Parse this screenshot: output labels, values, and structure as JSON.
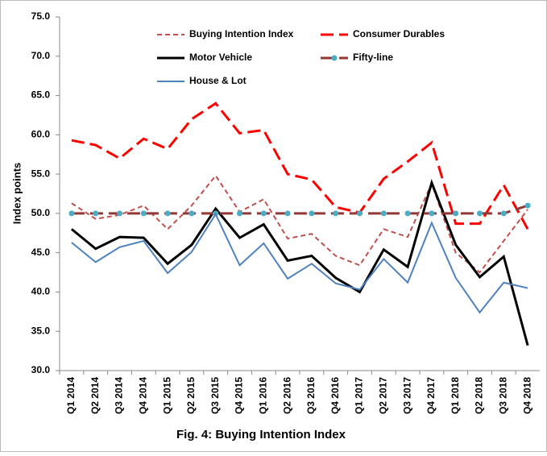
{
  "chart_data": {
    "type": "line",
    "title": "Fig. 4: Buying Intention  Index",
    "y_label": "Index points",
    "categories": [
      "Q1 2014",
      "Q2 2014",
      "Q3 2014",
      "Q4 2014",
      "Q1 2015",
      "Q2 2015",
      "Q3 2015",
      "Q4 2015",
      "Q1 2016",
      "Q2 2016",
      "Q3 2016",
      "Q4 2016",
      "Q1 2017",
      "Q2 2017",
      "Q3 2017",
      "Q4 2017",
      "Q1 2018",
      "Q2 2018",
      "Q3 2018",
      "Q4 2018"
    ],
    "series": [
      {
        "name": "Buying Intention Index",
        "color": "#c0504d",
        "style": "dashed",
        "values": [
          51.3,
          49.3,
          49.8,
          51.0,
          48.0,
          51.0,
          54.8,
          50.2,
          51.8,
          46.8,
          47.4,
          44.6,
          43.4,
          48.0,
          47.0,
          53.8,
          45.0,
          42.5,
          46.5,
          50.5
        ]
      },
      {
        "name": "Consumer Durables",
        "color": "#ff0000",
        "style": "long-dashed",
        "values": [
          59.3,
          58.7,
          57.0,
          59.5,
          58.2,
          62.0,
          64.0,
          60.2,
          60.6,
          55.0,
          54.3,
          50.8,
          50.1,
          54.4,
          56.6,
          59.0,
          48.7,
          48.7,
          53.6,
          48.0
        ]
      },
      {
        "name": "Motor Vehicle",
        "color": "#000000",
        "style": "solid",
        "values": [
          48.0,
          45.5,
          47.0,
          46.9,
          43.6,
          46.0,
          50.6,
          46.9,
          48.6,
          44.0,
          44.6,
          41.8,
          40.0,
          45.4,
          43.2,
          53.9,
          46.0,
          41.9,
          44.5,
          33.2
        ]
      },
      {
        "name": "Fifty-line",
        "color": "#943634",
        "style": "long-dashed",
        "marker_color": "#4bacc6",
        "values": [
          50,
          50,
          50,
          50,
          50,
          50,
          50,
          50,
          50,
          50,
          50,
          50,
          50,
          50,
          50,
          50,
          50,
          50,
          50,
          51
        ]
      },
      {
        "name": "House & Lot",
        "color": "#4f81bd",
        "style": "solid",
        "values": [
          46.3,
          43.8,
          45.7,
          46.5,
          42.4,
          45.1,
          49.9,
          43.4,
          46.2,
          41.7,
          43.6,
          41.1,
          40.3,
          44.2,
          41.2,
          48.8,
          41.8,
          37.4,
          41.2,
          40.5
        ]
      }
    ],
    "ylim": [
      30,
      75
    ],
    "yticks": [
      {
        "value": 30,
        "label": "30.0"
      },
      {
        "value": 35,
        "label": "35.0"
      },
      {
        "value": 40,
        "label": "40.0"
      },
      {
        "value": 45,
        "label": "45.0"
      },
      {
        "value": 50,
        "label": "50.0"
      },
      {
        "value": 55,
        "label": "55.0"
      },
      {
        "value": 60,
        "label": "60.0"
      },
      {
        "value": 65,
        "label": "65.0"
      },
      {
        "value": 70,
        "label": "70.0"
      },
      {
        "value": 75,
        "label": "75.0"
      }
    ]
  }
}
